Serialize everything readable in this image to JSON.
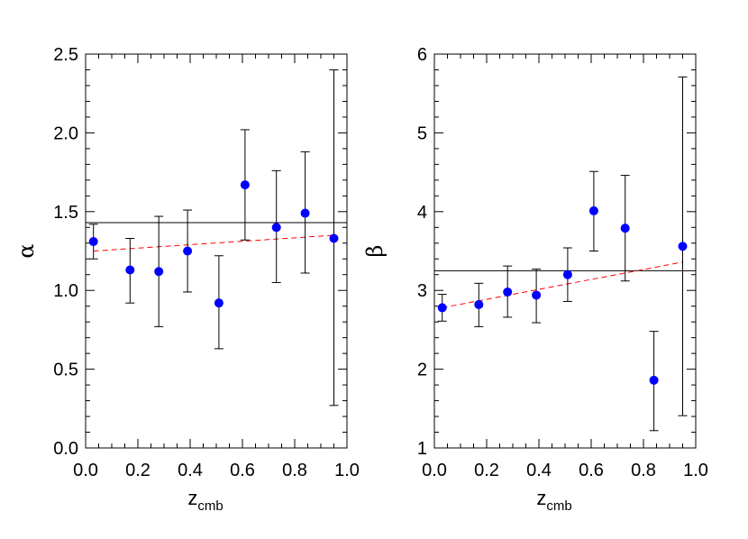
{
  "chart_data": [
    {
      "type": "scatter",
      "xlabel": "z",
      "xlabel_sub": "cmb",
      "ylabel": "α",
      "xlim": [
        0.0,
        1.0
      ],
      "ylim": [
        0.0,
        2.5
      ],
      "x_ticks": [
        0.0,
        0.2,
        0.4,
        0.6,
        0.8,
        1.0
      ],
      "x_tick_labels": [
        "0.0",
        "0.2",
        "0.4",
        "0.6",
        "0.8",
        "1.0"
      ],
      "y_ticks": [
        0.0,
        0.5,
        1.0,
        1.5,
        2.0,
        2.5
      ],
      "y_tick_labels": [
        "0.0",
        "0.5",
        "1.0",
        "1.5",
        "2.0",
        "2.5"
      ],
      "point_color": "#0000ff",
      "x": [
        0.03,
        0.17,
        0.28,
        0.39,
        0.51,
        0.61,
        0.73,
        0.84,
        0.95
      ],
      "y": [
        1.31,
        1.13,
        1.12,
        1.25,
        0.92,
        1.67,
        1.4,
        1.49,
        1.33
      ],
      "y_err_low": [
        0.11,
        0.21,
        0.35,
        0.26,
        0.29,
        0.35,
        0.35,
        0.38,
        1.06
      ],
      "y_err_high": [
        0.11,
        0.2,
        0.35,
        0.26,
        0.3,
        0.35,
        0.36,
        0.39,
        1.07
      ],
      "reference_line": {
        "y": 1.43,
        "style": "solid",
        "color": "#000000"
      },
      "trend_line": {
        "x": [
          0.03,
          0.95
        ],
        "y": [
          1.25,
          1.35
        ],
        "style": "dashed",
        "color": "#ff0000"
      }
    },
    {
      "type": "scatter",
      "xlabel": "z",
      "xlabel_sub": "cmb",
      "ylabel": "β",
      "xlim": [
        0.0,
        1.0
      ],
      "ylim": [
        1.0,
        6.0
      ],
      "x_ticks": [
        0.0,
        0.2,
        0.4,
        0.6,
        0.8,
        1.0
      ],
      "x_tick_labels": [
        "0.0",
        "0.2",
        "0.4",
        "0.6",
        "0.8",
        "1.0"
      ],
      "y_ticks": [
        1,
        2,
        3,
        4,
        5,
        6
      ],
      "y_tick_labels": [
        "1",
        "2",
        "3",
        "4",
        "5",
        "6"
      ],
      "point_color": "#0000ff",
      "x": [
        0.03,
        0.17,
        0.28,
        0.39,
        0.51,
        0.61,
        0.73,
        0.84,
        0.95
      ],
      "y": [
        2.78,
        2.82,
        2.98,
        2.94,
        3.2,
        4.01,
        3.79,
        1.86,
        3.56
      ],
      "y_err_low": [
        0.17,
        0.28,
        0.32,
        0.35,
        0.34,
        0.51,
        0.67,
        0.64,
        2.15
      ],
      "y_err_high": [
        0.17,
        0.27,
        0.33,
        0.33,
        0.34,
        0.5,
        0.67,
        0.62,
        2.15
      ],
      "reference_line": {
        "y": 3.25,
        "style": "solid",
        "color": "#000000"
      },
      "trend_line": {
        "x": [
          0.03,
          0.95
        ],
        "y": [
          2.78,
          3.36
        ],
        "style": "dashed",
        "color": "#ff0000"
      }
    }
  ]
}
